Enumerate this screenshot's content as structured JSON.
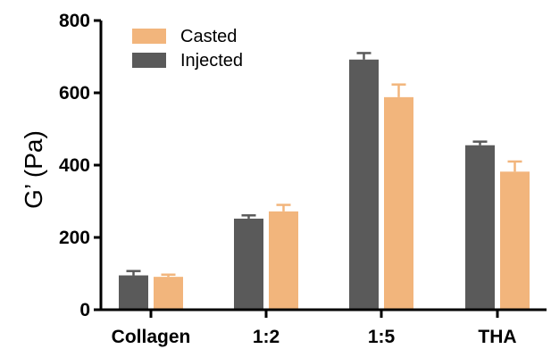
{
  "chart_data": {
    "type": "bar",
    "title": "",
    "xlabel": "",
    "ylabel": "G’ (Pa)",
    "ylim": [
      0,
      800
    ],
    "yticks": [
      0,
      200,
      400,
      600,
      800
    ],
    "grid": false,
    "legend_position": "top-left",
    "categories": [
      "Collagen",
      "1:2",
      "1:5",
      "THA"
    ],
    "series": [
      {
        "name": "Injected",
        "color": "#5a5a5a",
        "values": [
          95,
          252,
          692,
          455
        ],
        "errors": [
          12,
          9,
          18,
          10
        ]
      },
      {
        "name": "Casted",
        "color": "#f2b57c",
        "values": [
          91,
          272,
          588,
          382
        ],
        "errors": [
          6,
          18,
          35,
          28
        ]
      }
    ],
    "legend_order": [
      "Casted",
      "Injected"
    ]
  }
}
